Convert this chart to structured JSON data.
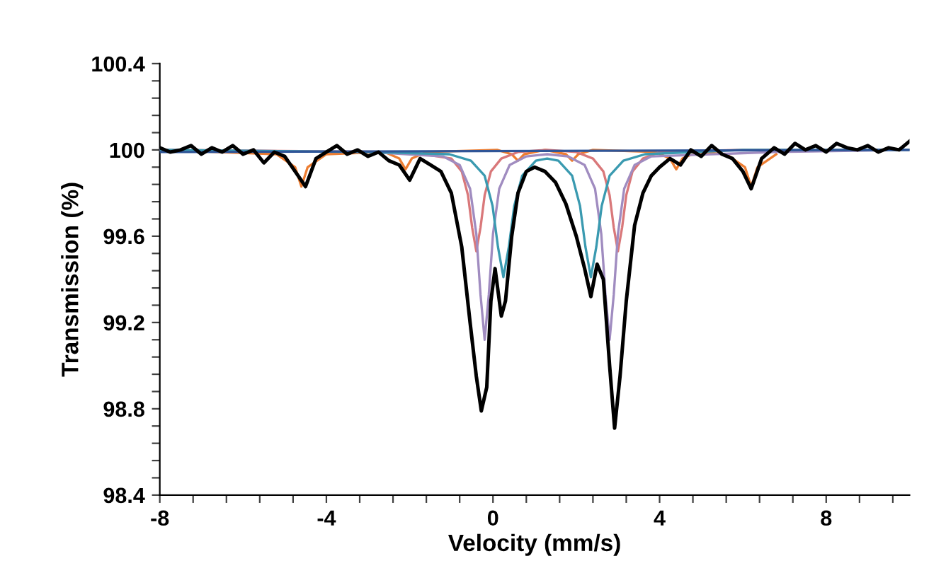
{
  "chart_data": {
    "type": "line",
    "xlabel": "Velocity (mm/s)",
    "ylabel": "Transmission (%)",
    "xlim": [
      -8,
      10
    ],
    "ylim": [
      98.4,
      100.4
    ],
    "xticks": [
      -8,
      {
        "value": -7.2,
        "label": null
      },
      {
        "value": -6.4,
        "label": null
      },
      {
        "value": -5.6,
        "label": null
      },
      {
        "value": -4.8,
        "label": null
      },
      -4,
      {
        "value": -3.2,
        "label": null
      },
      {
        "value": -2.4,
        "label": null
      },
      {
        "value": -1.6,
        "label": null
      },
      {
        "value": -0.8,
        "label": null
      },
      0,
      {
        "value": 0.8,
        "label": null
      },
      {
        "value": 1.6,
        "label": null
      },
      {
        "value": 2.4,
        "label": null
      },
      {
        "value": 3.2,
        "label": null
      },
      4,
      {
        "value": 4.8,
        "label": null
      },
      {
        "value": 5.6,
        "label": null
      },
      {
        "value": 6.4,
        "label": null
      },
      {
        "value": 7.2,
        "label": null
      },
      8,
      {
        "value": 8.8,
        "label": null
      },
      {
        "value": 9.6,
        "label": null
      }
    ],
    "yticks": [
      98.4,
      {
        "value": 98.48,
        "label": null
      },
      {
        "value": 98.56,
        "label": null
      },
      {
        "value": 98.64,
        "label": null
      },
      {
        "value": 98.72,
        "label": null
      },
      98.8,
      {
        "value": 98.88,
        "label": null
      },
      {
        "value": 98.96,
        "label": null
      },
      {
        "value": 99.04,
        "label": null
      },
      {
        "value": 99.12,
        "label": null
      },
      99.2,
      {
        "value": 99.28,
        "label": null
      },
      {
        "value": 99.36,
        "label": null
      },
      {
        "value": 99.44,
        "label": null
      },
      {
        "value": 99.52,
        "label": null
      },
      99.6,
      {
        "value": 99.68,
        "label": null
      },
      {
        "value": 99.76,
        "label": null
      },
      {
        "value": 99.84,
        "label": null
      },
      {
        "value": 99.92,
        "label": null
      },
      100,
      {
        "value": 100.08,
        "label": null
      },
      {
        "value": 100.16,
        "label": null
      },
      {
        "value": 100.24,
        "label": null
      },
      {
        "value": 100.32,
        "label": null
      },
      100.4
    ],
    "grid": false,
    "marker": "none",
    "line_style": "solid",
    "series": [
      {
        "color": "#ed7d31",
        "x": [
          -8,
          -5.2,
          -4.75,
          -4.6,
          -4.45,
          -4.0,
          -2.6,
          -2.25,
          -2.1,
          -1.95,
          -1.6,
          0.1,
          0.45,
          0.6,
          0.75,
          1.25,
          1.75,
          1.9,
          2.05,
          2.4,
          3.9,
          4.25,
          4.4,
          4.55,
          4.9,
          5.6,
          6.05,
          6.2,
          6.35,
          6.8
        ],
        "values": [
          100,
          99.98,
          99.92,
          99.83,
          99.92,
          99.98,
          99.99,
          99.96,
          99.91,
          99.96,
          99.99,
          100,
          99.98,
          99.95,
          99.98,
          100,
          99.98,
          99.95,
          99.98,
          100,
          99.99,
          99.96,
          99.91,
          99.96,
          99.99,
          99.98,
          99.92,
          99.83,
          99.92,
          99.98
        ]
      },
      {
        "color": "#d9787a",
        "x": [
          -8,
          -2,
          -1.0,
          -0.75,
          -0.6,
          -0.5,
          -0.4,
          -0.3,
          -0.2,
          -0.05,
          0.2,
          0.6,
          1.3,
          2.0,
          2.4,
          2.65,
          2.8,
          2.9,
          3.0,
          3.1,
          3.2,
          3.35,
          3.6,
          4.0,
          6,
          10
        ],
        "values": [
          100,
          99.99,
          99.96,
          99.9,
          99.79,
          99.64,
          99.53,
          99.64,
          99.79,
          99.9,
          99.96,
          99.99,
          100,
          99.99,
          99.96,
          99.9,
          99.79,
          99.64,
          99.53,
          99.64,
          99.79,
          99.9,
          99.96,
          99.99,
          100,
          100
        ]
      },
      {
        "color": "#a08cc0",
        "x": [
          -8,
          -3,
          -1.2,
          -0.8,
          -0.55,
          -0.4,
          -0.3,
          -0.2,
          -0.1,
          0,
          0.15,
          0.4,
          0.8,
          1.3,
          1.8,
          2.2,
          2.45,
          2.6,
          2.7,
          2.8,
          2.9,
          3.0,
          3.15,
          3.4,
          3.8,
          6.8,
          10
        ],
        "values": [
          100,
          99.99,
          99.97,
          99.93,
          99.82,
          99.61,
          99.33,
          99.12,
          99.33,
          99.61,
          99.82,
          99.93,
          99.97,
          99.98,
          99.97,
          99.93,
          99.82,
          99.61,
          99.33,
          99.12,
          99.33,
          99.61,
          99.82,
          99.93,
          99.97,
          99.99,
          100
        ]
      },
      {
        "color": "#3a9ab0",
        "x": [
          -8,
          -3,
          -1.05,
          -0.53,
          -0.2,
          -0.01,
          0.12,
          0.25,
          0.38,
          0.51,
          0.7,
          1.03,
          1.3,
          1.57,
          1.9,
          2.09,
          2.22,
          2.35,
          2.48,
          2.61,
          2.8,
          3.13,
          3.65,
          6,
          10
        ],
        "values": [
          100,
          99.99,
          99.98,
          99.95,
          99.88,
          99.74,
          99.55,
          99.41,
          99.55,
          99.74,
          99.88,
          99.95,
          99.96,
          99.95,
          99.88,
          99.74,
          99.55,
          99.41,
          99.55,
          99.74,
          99.88,
          99.95,
          99.98,
          100,
          100
        ]
      },
      {
        "color": "#2f5597",
        "x": [
          -8,
          10
        ],
        "values": [
          99.99,
          100
        ]
      },
      {
        "color": "#000000",
        "x": [
          -8,
          -7.75,
          -7.5,
          -7.25,
          -7,
          -6.75,
          -6.5,
          -6.25,
          -6,
          -5.75,
          -5.5,
          -5.25,
          -5,
          -4.75,
          -4.5,
          -4.25,
          -4,
          -3.75,
          -3.5,
          -3.25,
          -3,
          -2.75,
          -2.5,
          -2.25,
          -2,
          -1.75,
          -1.5,
          -1.25,
          -1,
          -0.75,
          -0.55,
          -0.4,
          -0.28,
          -0.15,
          -0.05,
          0.05,
          0.2,
          0.3,
          0.45,
          0.6,
          0.8,
          1,
          1.25,
          1.5,
          1.75,
          2,
          2.2,
          2.35,
          2.5,
          2.65,
          2.8,
          2.92,
          3.05,
          3.2,
          3.4,
          3.6,
          3.8,
          4,
          4.25,
          4.5,
          4.75,
          5,
          5.25,
          5.5,
          5.75,
          6,
          6.2,
          6.45,
          6.75,
          7,
          7.25,
          7.5,
          7.75,
          8,
          8.25,
          8.5,
          8.75,
          9,
          9.25,
          9.5,
          9.75,
          10
        ],
        "values": [
          100.01,
          99.99,
          100,
          100.02,
          99.98,
          100.01,
          99.99,
          100.02,
          99.98,
          100,
          99.94,
          99.99,
          99.97,
          99.9,
          99.83,
          99.96,
          99.99,
          100.02,
          99.98,
          100,
          99.97,
          99.99,
          99.95,
          99.93,
          99.86,
          99.96,
          99.93,
          99.9,
          99.8,
          99.55,
          99.2,
          98.95,
          98.79,
          98.9,
          99.3,
          99.45,
          99.23,
          99.3,
          99.6,
          99.8,
          99.9,
          99.92,
          99.9,
          99.85,
          99.75,
          99.6,
          99.45,
          99.32,
          99.47,
          99.4,
          99.0,
          98.71,
          98.95,
          99.3,
          99.65,
          99.8,
          99.88,
          99.92,
          99.96,
          99.93,
          100,
          99.97,
          100.02,
          99.98,
          99.96,
          99.9,
          99.82,
          99.96,
          100.01,
          99.98,
          100.03,
          100,
          100.02,
          99.99,
          100.03,
          100.01,
          100,
          100.02,
          99.99,
          100.01,
          100,
          100.04
        ]
      }
    ]
  }
}
